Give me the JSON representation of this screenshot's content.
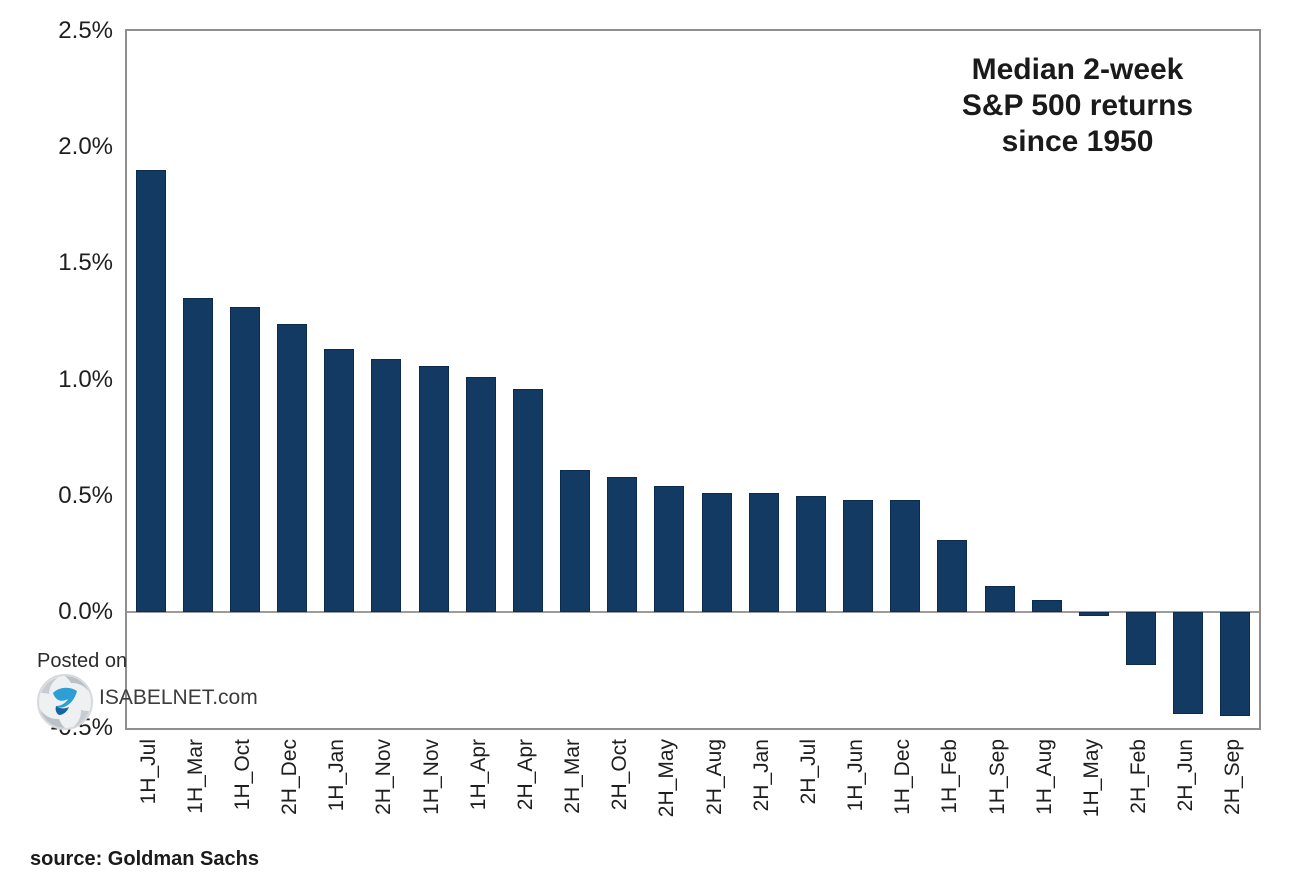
{
  "chart_data": {
    "type": "bar",
    "title": "Median 2-week S&P 500 returns since 1950",
    "title_lines": [
      "Median 2-week",
      "S&P 500 returns",
      "since 1950"
    ],
    "categories": [
      "1H_Jul",
      "1H_Mar",
      "1H_Oct",
      "2H_Dec",
      "1H_Jan",
      "2H_Nov",
      "1H_Nov",
      "1H_Apr",
      "2H_Apr",
      "2H_Mar",
      "2H_Oct",
      "2H_May",
      "2H_Aug",
      "2H_Jan",
      "2H_Jul",
      "1H_Jun",
      "1H_Dec",
      "1H_Feb",
      "1H_Sep",
      "1H_Aug",
      "1H_May",
      "2H_Feb",
      "2H_Jun",
      "2H_Sep"
    ],
    "values": [
      1.9,
      1.35,
      1.31,
      1.24,
      1.13,
      1.09,
      1.06,
      1.01,
      0.96,
      0.61,
      0.58,
      0.54,
      0.51,
      0.51,
      0.5,
      0.48,
      0.48,
      0.31,
      0.11,
      0.05,
      -0.02,
      -0.23,
      -0.44,
      -0.45
    ],
    "unit": "%",
    "xlabel": "",
    "ylabel": "",
    "ylim": [
      -0.5,
      2.5
    ],
    "ytick_step": 0.5,
    "ytick_labels": [
      "2.5%",
      "2.0%",
      "1.5%",
      "1.0%",
      "0.5%",
      "0.0%",
      "-0.5%"
    ],
    "grid": false,
    "legend": "none",
    "bar_color": "#123a62",
    "bar_border_color": "#0c2c4e",
    "axis_border_color": "#8f8f8f",
    "zero_line_color": "#9c9c9c"
  },
  "watermark": {
    "posted_on": "Posted on",
    "site": "ISABELNET.com",
    "logo_icon": "swirl-logo-icon",
    "logo_blue": "#2e9fd4",
    "logo_dark_blue": "#1565a0",
    "logo_gray": "#b9c0c7"
  },
  "footer": {
    "source": "source: Goldman Sachs"
  }
}
